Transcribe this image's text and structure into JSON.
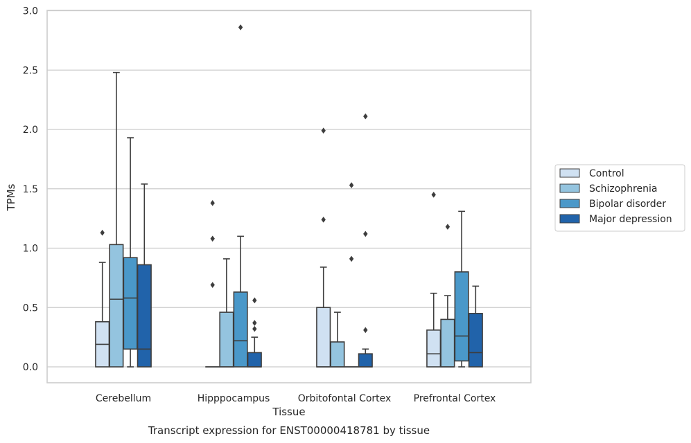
{
  "chart_data": {
    "type": "box",
    "title": "",
    "xlabel": "Tissue",
    "ylabel": "TPMs",
    "caption": "Transcript expression for ENST00000418781 by tissue",
    "ylim": [
      -0.14,
      3.0
    ],
    "yticks": [
      0.0,
      0.5,
      1.0,
      1.5,
      2.0,
      2.5,
      3.0
    ],
    "ytick_labels": [
      "0.0",
      "0.5",
      "1.0",
      "1.5",
      "2.0",
      "2.5",
      "3.0"
    ],
    "grid": "horizontal",
    "legend_position": "right",
    "categories": [
      "Cerebellum",
      "Hipppocampus",
      "Orbitofontal Cortex",
      "Prefrontal Cortex"
    ],
    "series": [
      {
        "name": "Control",
        "color": "#d0e1f2",
        "boxes": [
          {
            "whisker_low": 0.0,
            "q1": 0.0,
            "median": 0.19,
            "q3": 0.38,
            "whisker_high": 0.88,
            "outliers": [
              1.13
            ]
          },
          {
            "whisker_low": 0.0,
            "q1": 0.0,
            "median": 0.0,
            "q3": 0.0,
            "whisker_high": 0.0,
            "outliers": [
              0.69,
              1.08,
              1.38
            ]
          },
          {
            "whisker_low": 0.0,
            "q1": 0.0,
            "median": 0.0,
            "q3": 0.5,
            "whisker_high": 0.84,
            "outliers": [
              1.24,
              1.99
            ]
          },
          {
            "whisker_low": 0.0,
            "q1": 0.0,
            "median": 0.11,
            "q3": 0.31,
            "whisker_high": 0.62,
            "outliers": [
              1.45
            ]
          }
        ]
      },
      {
        "name": "Schizophrenia",
        "color": "#94c4df",
        "boxes": [
          {
            "whisker_low": 0.0,
            "q1": 0.0,
            "median": 0.57,
            "q3": 1.03,
            "whisker_high": 2.48,
            "outliers": []
          },
          {
            "whisker_low": 0.0,
            "q1": 0.0,
            "median": 0.0,
            "q3": 0.46,
            "whisker_high": 0.91,
            "outliers": []
          },
          {
            "whisker_low": 0.0,
            "q1": 0.0,
            "median": 0.0,
            "q3": 0.21,
            "whisker_high": 0.46,
            "outliers": []
          },
          {
            "whisker_low": 0.0,
            "q1": 0.0,
            "median": 0.0,
            "q3": 0.4,
            "whisker_high": 0.6,
            "outliers": [
              1.18
            ]
          }
        ]
      },
      {
        "name": "Bipolar disorder",
        "color": "#4a98c9",
        "boxes": [
          {
            "whisker_low": 0.0,
            "q1": 0.15,
            "median": 0.58,
            "q3": 0.92,
            "whisker_high": 1.93,
            "outliers": []
          },
          {
            "whisker_low": 0.0,
            "q1": 0.0,
            "median": 0.22,
            "q3": 0.63,
            "whisker_high": 1.1,
            "outliers": [
              2.86
            ]
          },
          {
            "whisker_low": 0.0,
            "q1": 0.0,
            "median": 0.0,
            "q3": 0.0,
            "whisker_high": 0.0,
            "outliers": [
              0.91,
              1.53
            ]
          },
          {
            "whisker_low": 0.0,
            "q1": 0.05,
            "median": 0.26,
            "q3": 0.8,
            "whisker_high": 1.31,
            "outliers": []
          }
        ]
      },
      {
        "name": "Major depression",
        "color": "#2163aa",
        "boxes": [
          {
            "whisker_low": 0.0,
            "q1": 0.0,
            "median": 0.15,
            "q3": 0.86,
            "whisker_high": 1.54,
            "outliers": []
          },
          {
            "whisker_low": 0.0,
            "q1": 0.0,
            "median": 0.0,
            "q3": 0.12,
            "whisker_high": 0.25,
            "outliers": [
              0.32,
              0.37,
              0.56
            ]
          },
          {
            "whisker_low": 0.0,
            "q1": 0.0,
            "median": 0.0,
            "q3": 0.11,
            "whisker_high": 0.15,
            "outliers": [
              0.31,
              1.12,
              2.11
            ]
          },
          {
            "whisker_low": 0.0,
            "q1": 0.0,
            "median": 0.12,
            "q3": 0.45,
            "whisker_high": 0.68,
            "outliers": []
          }
        ]
      }
    ]
  }
}
